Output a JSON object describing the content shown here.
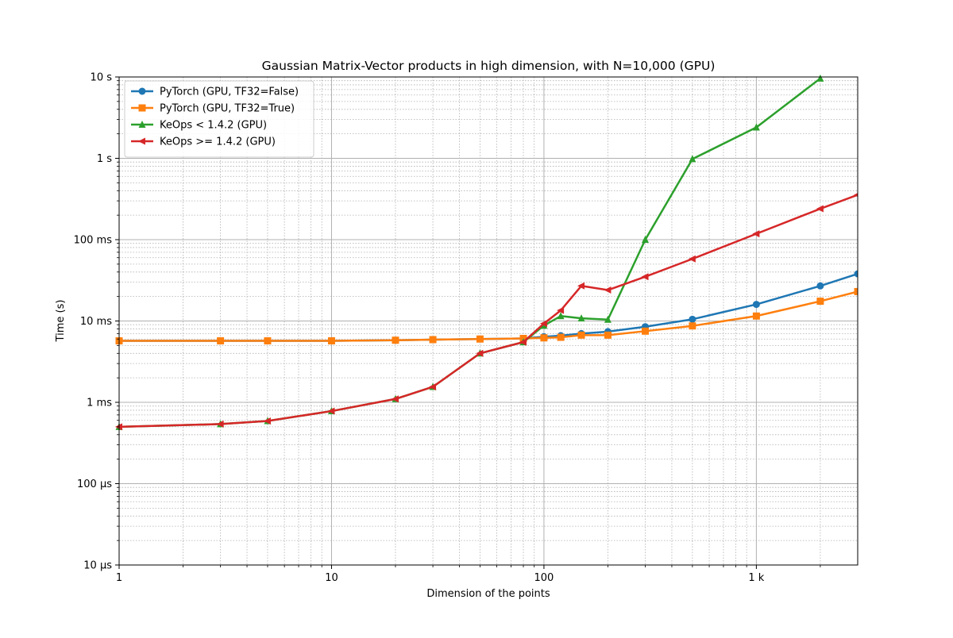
{
  "chart_data": {
    "type": "line",
    "title": "Gaussian Matrix-Vector products in high dimension, with N=10,000 (GPU)",
    "xlabel": "Dimension of the points",
    "ylabel": "Time (s)",
    "xscale": "log",
    "yscale": "log",
    "xlim": [
      1,
      3000
    ],
    "ylim": [
      1e-05,
      10
    ],
    "x_ticks": [
      {
        "value": 1,
        "label": "1"
      },
      {
        "value": 10,
        "label": "10"
      },
      {
        "value": 100,
        "label": "100"
      },
      {
        "value": 1000,
        "label": "1 k"
      }
    ],
    "y_ticks": [
      {
        "value": 1e-05,
        "label": "10 µs"
      },
      {
        "value": 0.0001,
        "label": "100 µs"
      },
      {
        "value": 0.001,
        "label": "1 ms"
      },
      {
        "value": 0.01,
        "label": "10 ms"
      },
      {
        "value": 0.1,
        "label": "100 ms"
      },
      {
        "value": 1,
        "label": "1 s"
      },
      {
        "value": 10,
        "label": "10 s"
      }
    ],
    "grid": true,
    "minor_grid": true,
    "legend_position": "top-left",
    "series": [
      {
        "name": "PyTorch (GPU, TF32=False)",
        "color": "#1f77b4",
        "marker": "circle",
        "x": [
          1,
          3,
          5,
          10,
          20,
          30,
          50,
          80,
          100,
          120,
          150,
          200,
          300,
          500,
          1000,
          2000,
          3000
        ],
        "y": [
          0.0057,
          0.0057,
          0.0057,
          0.0057,
          0.0058,
          0.0059,
          0.006,
          0.0061,
          0.0064,
          0.0066,
          0.007,
          0.0074,
          0.0085,
          0.0105,
          0.016,
          0.027,
          0.038
        ]
      },
      {
        "name": "PyTorch (GPU, TF32=True)",
        "color": "#ff7f0e",
        "marker": "square",
        "x": [
          1,
          3,
          5,
          10,
          20,
          30,
          50,
          80,
          100,
          120,
          150,
          200,
          300,
          500,
          1000,
          2000,
          3000
        ],
        "y": [
          0.0057,
          0.0057,
          0.0057,
          0.0057,
          0.0058,
          0.0059,
          0.006,
          0.0061,
          0.0062,
          0.0063,
          0.0067,
          0.0067,
          0.0075,
          0.0087,
          0.0115,
          0.0175,
          0.023
        ]
      },
      {
        "name": "KeOps < 1.4.2 (GPU)",
        "color": "#2ca02c",
        "marker": "triangle-up",
        "x": [
          1,
          3,
          5,
          10,
          20,
          30,
          50,
          80,
          100,
          120,
          150,
          200,
          300,
          500,
          1000,
          2000
        ],
        "y": [
          0.0005,
          0.00054,
          0.00059,
          0.00078,
          0.0011,
          0.00155,
          0.004,
          0.0055,
          0.0088,
          0.0115,
          0.0108,
          0.0104,
          0.1,
          0.98,
          2.4,
          9.6
        ]
      },
      {
        "name": "KeOps >= 1.4.2 (GPU)",
        "color": "#d62728",
        "marker": "triangle-left",
        "x": [
          1,
          3,
          5,
          10,
          20,
          30,
          50,
          80,
          100,
          120,
          150,
          200,
          300,
          500,
          1000,
          2000,
          3000
        ],
        "y": [
          0.0005,
          0.00054,
          0.00059,
          0.00078,
          0.0011,
          0.00155,
          0.004,
          0.0055,
          0.0093,
          0.0135,
          0.027,
          0.024,
          0.035,
          0.058,
          0.118,
          0.24,
          0.355
        ]
      }
    ]
  }
}
